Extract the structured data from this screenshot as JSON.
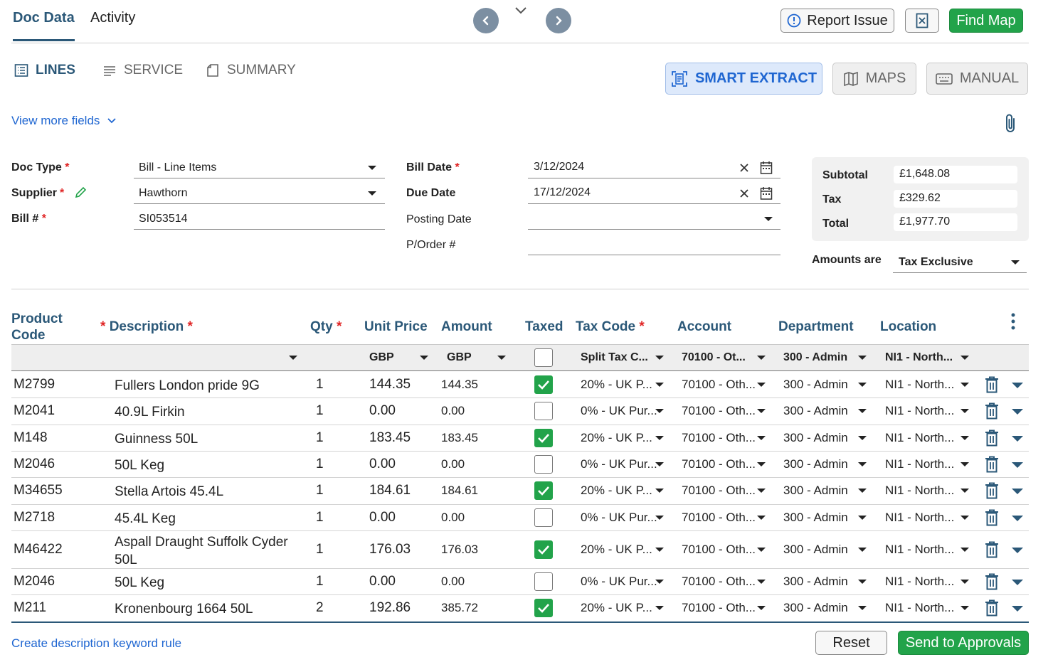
{
  "top": {
    "tabs": [
      "Doc Data",
      "Activity"
    ],
    "report_issue": "Report Issue",
    "find_map": "Find Map"
  },
  "subtabs": [
    "LINES",
    "SERVICE",
    "SUMMARY"
  ],
  "modes": [
    "SMART EXTRACT",
    "MAPS",
    "MANUAL"
  ],
  "view_more": "View more fields",
  "form": {
    "doc_type_label": "Doc Type",
    "doc_type_value": "Bill - Line Items",
    "supplier_label": "Supplier",
    "supplier_value": "Hawthorn",
    "bill_no_label": "Bill #",
    "bill_no_value": "SI053514",
    "bill_date_label": "Bill Date",
    "bill_date_value": "3/12/2024",
    "due_date_label": "Due Date",
    "due_date_value": "17/12/2024",
    "posting_date_label": "Posting Date",
    "po_label": "P/Order #",
    "req": "*"
  },
  "totals": {
    "subtotal_label": "Subtotal",
    "subtotal": "£1,648.08",
    "tax_label": "Tax",
    "tax": "£329.62",
    "total_label": "Total",
    "total": "£1,977.70",
    "amounts_are_label": "Amounts are",
    "amounts_are": "Tax Exclusive"
  },
  "table": {
    "headers": {
      "product_code": "Product Code",
      "description": "Description",
      "qty": "Qty",
      "unit_price": "Unit Price",
      "amount": "Amount",
      "taxed": "Taxed",
      "tax_code": "Tax Code",
      "account": "Account",
      "department": "Department",
      "location": "Location"
    },
    "defaults": {
      "unit_price": "GBP",
      "amount": "GBP",
      "tax_code": "Split Tax C...",
      "account": "70100 - Ot...",
      "department": "300 - Admin",
      "location": "NI1 - North..."
    },
    "rows": [
      {
        "code": "M2799",
        "desc": "Fullers London pride 9G",
        "qty": "1",
        "unit": "144.35",
        "amount": "144.35",
        "taxed": true,
        "tax_code": "20% - UK P...",
        "account": "70100 - Oth...",
        "dept": "300 - Admin",
        "loc": "NI1 - North..."
      },
      {
        "code": "M2041",
        "desc": "40.9L Firkin",
        "qty": "1",
        "unit": "0.00",
        "amount": "0.00",
        "taxed": false,
        "tax_code": "0% - UK Pur...",
        "account": "70100 - Oth...",
        "dept": "300 - Admin",
        "loc": "NI1 - North..."
      },
      {
        "code": "M148",
        "desc": "Guinness 50L",
        "qty": "1",
        "unit": "183.45",
        "amount": "183.45",
        "taxed": true,
        "tax_code": "20% - UK P...",
        "account": "70100 - Oth...",
        "dept": "300 - Admin",
        "loc": "NI1 - North..."
      },
      {
        "code": "M2046",
        "desc": "50L Keg",
        "qty": "1",
        "unit": "0.00",
        "amount": "0.00",
        "taxed": false,
        "tax_code": "0% - UK Pur...",
        "account": "70100 - Oth...",
        "dept": "300 - Admin",
        "loc": "NI1 - North..."
      },
      {
        "code": "M34655",
        "desc": "Stella Artois 45.4L",
        "qty": "1",
        "unit": "184.61",
        "amount": "184.61",
        "taxed": true,
        "tax_code": "20% - UK P...",
        "account": "70100 - Oth...",
        "dept": "300 - Admin",
        "loc": "NI1 - North..."
      },
      {
        "code": "M2718",
        "desc": "45.4L Keg",
        "qty": "1",
        "unit": "0.00",
        "amount": "0.00",
        "taxed": false,
        "tax_code": "0% - UK Pur...",
        "account": "70100 - Oth...",
        "dept": "300 - Admin",
        "loc": "NI1 - North..."
      },
      {
        "code": "M46422",
        "desc": "Aspall Draught Suffolk Cyder 50L",
        "qty": "1",
        "unit": "176.03",
        "amount": "176.03",
        "taxed": true,
        "tax_code": "20% - UK P...",
        "account": "70100 - Oth...",
        "dept": "300 - Admin",
        "loc": "NI1 - North..."
      },
      {
        "code": "M2046",
        "desc": "50L Keg",
        "qty": "1",
        "unit": "0.00",
        "amount": "0.00",
        "taxed": false,
        "tax_code": "0% - UK Pur...",
        "account": "70100 - Oth...",
        "dept": "300 - Admin",
        "loc": "NI1 - North..."
      },
      {
        "code": "M211",
        "desc": "Kronenbourg 1664 50L",
        "qty": "2",
        "unit": "192.86",
        "amount": "385.72",
        "taxed": true,
        "tax_code": "20% - UK P...",
        "account": "70100 - Oth...",
        "dept": "300 - Admin",
        "loc": "NI1 - North..."
      }
    ]
  },
  "footer": {
    "create_rule": "Create description keyword rule",
    "reset": "Reset",
    "send": "Send to Approvals"
  },
  "colors": {
    "navy": "#2b5878",
    "link_blue": "#1f66d1",
    "green": "#22a34a",
    "required": "#e02424"
  }
}
